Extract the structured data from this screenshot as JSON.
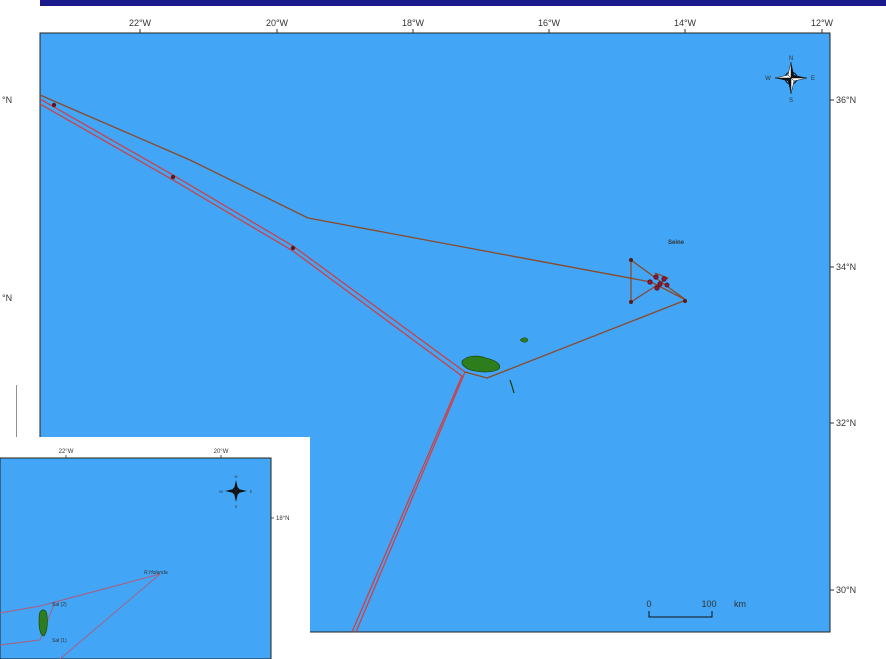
{
  "main_map": {
    "lon_labels": [
      "22°W",
      "20°W",
      "18°W",
      "16°W",
      "14°W",
      "12°W"
    ],
    "lat_labels": [
      "36°N",
      "34°N",
      "32°N",
      "30°N"
    ],
    "left_partial_labels": [
      "°N",
      "°N"
    ],
    "place_label": "Seine",
    "compass": {
      "n": "N",
      "s": "S",
      "e": "E",
      "w": "W"
    },
    "scale": {
      "zero": "0",
      "value": "100",
      "unit": "km"
    }
  },
  "inset_map": {
    "lon_labels": [
      "22°W",
      "20°W"
    ],
    "lat_labels": [
      "18°N"
    ],
    "place_labels": [
      "R.Holanda",
      "Sal (2)",
      "Sal (1)"
    ],
    "compass": {
      "n": "N",
      "s": "S",
      "e": "E",
      "w": "W"
    }
  },
  "colors": {
    "ocean": "#42a5f5",
    "island": "#2e7d1c",
    "track_red": "#d63a3a",
    "track_brown": "#8a4a2a",
    "frame_text": "#333333",
    "top_bar": "#1a1a8c"
  }
}
